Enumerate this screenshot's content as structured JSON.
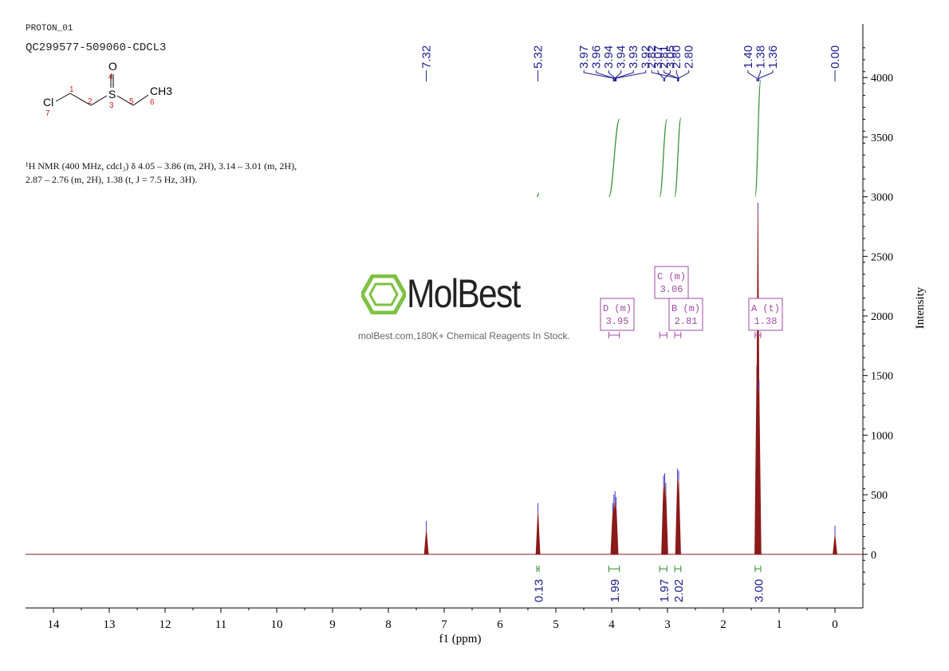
{
  "header": {
    "experiment": "PROTON_01",
    "sample_id": "QC299577-509060-CDCL3"
  },
  "structure": {
    "atoms": [
      {
        "label": "Cl",
        "num": "7",
        "color": "#000000"
      },
      {
        "label": "S",
        "num": "3"
      },
      {
        "label": "O",
        "num": "4"
      },
      {
        "label": "CH3",
        "num": "6"
      }
    ],
    "bond_numbers": [
      "1",
      "2",
      "5"
    ]
  },
  "nmr_text": {
    "line1": "¹H NMR (400 MHz, cdcl₃) δ 4.05 – 3.86 (m, 2H), 3.14 – 3.01 (m, 2H),",
    "line2": "2.87 – 2.76 (m, 2H), 1.38 (t, J = 7.5 Hz, 3H)."
  },
  "watermark": {
    "brand": "MolBest",
    "tagline": "molBest.com,180K+ Chemical Reagents In Stock."
  },
  "colors": {
    "spectrum": "#8b1a1a",
    "peak_labels": "#1c1c8c",
    "integral": "#2e8b2e",
    "multiplet": "#a04aa0",
    "logo": "#7dc242",
    "axis": "#000000"
  },
  "chart_data": {
    "type": "line",
    "title": "",
    "xlabel": "f1 (ppm)",
    "ylabel": "Intensity",
    "xlim": [
      14.5,
      -0.5
    ],
    "ylim": [
      -450,
      4450
    ],
    "x_ticks": [
      "14",
      "13",
      "12",
      "11",
      "10",
      "9",
      "8",
      "7",
      "6",
      "5",
      "4",
      "3",
      "2",
      "1",
      "0"
    ],
    "y_ticks": [
      "0",
      "500",
      "1000",
      "1500",
      "2000",
      "2500",
      "3000",
      "3500",
      "4000"
    ],
    "grid": false,
    "peaks": [
      {
        "ppm": 7.32,
        "height": 200
      },
      {
        "ppm": 5.32,
        "height": 350
      },
      {
        "ppm": 3.98,
        "height": 350
      },
      {
        "ppm": 3.96,
        "height": 420
      },
      {
        "ppm": 3.94,
        "height": 450
      },
      {
        "ppm": 3.92,
        "height": 400
      },
      {
        "ppm": 3.07,
        "height": 580
      },
      {
        "ppm": 3.05,
        "height": 600
      },
      {
        "ppm": 3.03,
        "height": 520
      },
      {
        "ppm": 2.82,
        "height": 640
      },
      {
        "ppm": 2.8,
        "height": 620
      },
      {
        "ppm": 1.4,
        "height": 1500
      },
      {
        "ppm": 1.38,
        "height": 2870
      },
      {
        "ppm": 1.36,
        "height": 1380
      },
      {
        "ppm": 0.0,
        "height": 160
      }
    ],
    "peak_labels": [
      {
        "ppm": 7.32,
        "text": "7.32"
      },
      {
        "ppm": 5.32,
        "text": "5.32"
      },
      {
        "ppm": 3.97,
        "text": "3.97"
      },
      {
        "ppm": 3.96,
        "text": "3.96"
      },
      {
        "ppm": 3.94,
        "text": "3.94"
      },
      {
        "ppm": 3.94,
        "text": "3.94"
      },
      {
        "ppm": 3.93,
        "text": "3.93"
      },
      {
        "ppm": 3.92,
        "text": "3.92"
      },
      {
        "ppm": 3.07,
        "text": "3.07"
      },
      {
        "ppm": 3.05,
        "text": "3.05"
      },
      {
        "ppm": 2.82,
        "text": "2.82"
      },
      {
        "ppm": 2.81,
        "text": "2.81"
      },
      {
        "ppm": 2.8,
        "text": "2.80"
      },
      {
        "ppm": 2.8,
        "text": "2.80"
      },
      {
        "ppm": 1.4,
        "text": "1.40"
      },
      {
        "ppm": 1.38,
        "text": "1.38"
      },
      {
        "ppm": 1.36,
        "text": "1.36"
      },
      {
        "ppm": 0.0,
        "text": "0.00"
      }
    ],
    "integrals": [
      {
        "from": 5.34,
        "to": 5.3,
        "value": "0.13",
        "rise": 30,
        "base": 3000
      },
      {
        "from": 4.05,
        "to": 3.86,
        "value": "1.99",
        "rise": 650,
        "base": 3000
      },
      {
        "from": 3.14,
        "to": 3.01,
        "value": "1.97",
        "rise": 650,
        "base": 3000
      },
      {
        "from": 2.87,
        "to": 2.76,
        "value": "2.02",
        "rise": 660,
        "base": 3000
      },
      {
        "from": 1.43,
        "to": 1.33,
        "value": "3.00",
        "rise": 980,
        "base": 3000
      }
    ],
    "multiplets": [
      {
        "id": "D (m)",
        "shift": "3.95",
        "ppm": 3.95,
        "range": [
          4.05,
          3.86
        ]
      },
      {
        "id": "C (m)",
        "shift": "3.06",
        "ppm": 3.06,
        "range": [
          3.14,
          3.01
        ]
      },
      {
        "id": "B (m)",
        "shift": "2.81",
        "ppm": 2.81,
        "range": [
          2.87,
          2.76
        ]
      },
      {
        "id": "A (t)",
        "shift": "1.38",
        "ppm": 1.38,
        "range": [
          1.43,
          1.33
        ]
      }
    ]
  }
}
